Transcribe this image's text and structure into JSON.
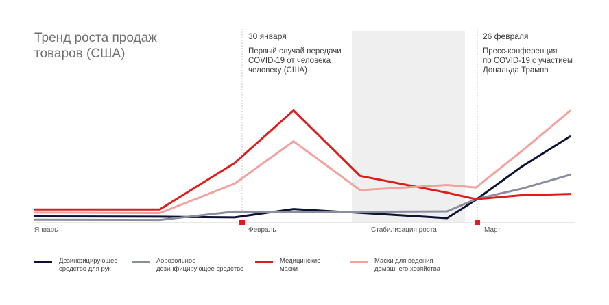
{
  "title": "Тренд роста продаж\nтоваров (США)",
  "annotations": [
    {
      "date": "30 января",
      "text": "Первый случай передачи\nCOVID-19 от человека\nчеловеку (США)"
    },
    {
      "date": "26 февраля",
      "text": "Пресс-конференция\nпо COVID-19 с участием\nДональда Трампа"
    }
  ],
  "axis_labels": [
    "Январь",
    "Февраль",
    "Стабилизация роста",
    "Март"
  ],
  "chart_data": {
    "type": "line",
    "title": "Тренд роста продаж товаров (США)",
    "x": [
      0,
      1,
      2,
      3,
      4,
      5,
      6,
      7,
      8
    ],
    "series": [
      {
        "name": "Дезинфицирующее средство для рук",
        "color": "#0d1232",
        "values": [
          4.5,
          4.3,
          3.8,
          10.3,
          7.3,
          3.2,
          17.5,
          43,
          67
        ]
      },
      {
        "name": "Аэрозольное дезинфицирующее средство",
        "color": "#8a8d9c",
        "values": [
          2,
          1.8,
          8.3,
          8.2,
          8.2,
          8.5,
          18,
          26,
          37
        ]
      },
      {
        "name": "Медицинские маски",
        "color": "#e01b1b",
        "values": [
          10,
          10,
          46,
          87,
          36,
          23,
          18,
          21,
          22
        ]
      },
      {
        "name": "Маски для ведения домашнего хозяйства",
        "color": "#f2a19c",
        "values": [
          7.5,
          7.2,
          30,
          63,
          25,
          29,
          27,
          55,
          87
        ]
      }
    ],
    "markers": [
      {
        "label": "30 января",
        "color": "#e01b1b"
      },
      {
        "label": "26 февраля",
        "color": "#e01b1b"
      }
    ],
    "shaded_region": {
      "label": "Стабилизация роста",
      "color": "#efefef"
    },
    "ylim": [
      0,
      100
    ],
    "grid": false,
    "legend_position": "bottom"
  }
}
